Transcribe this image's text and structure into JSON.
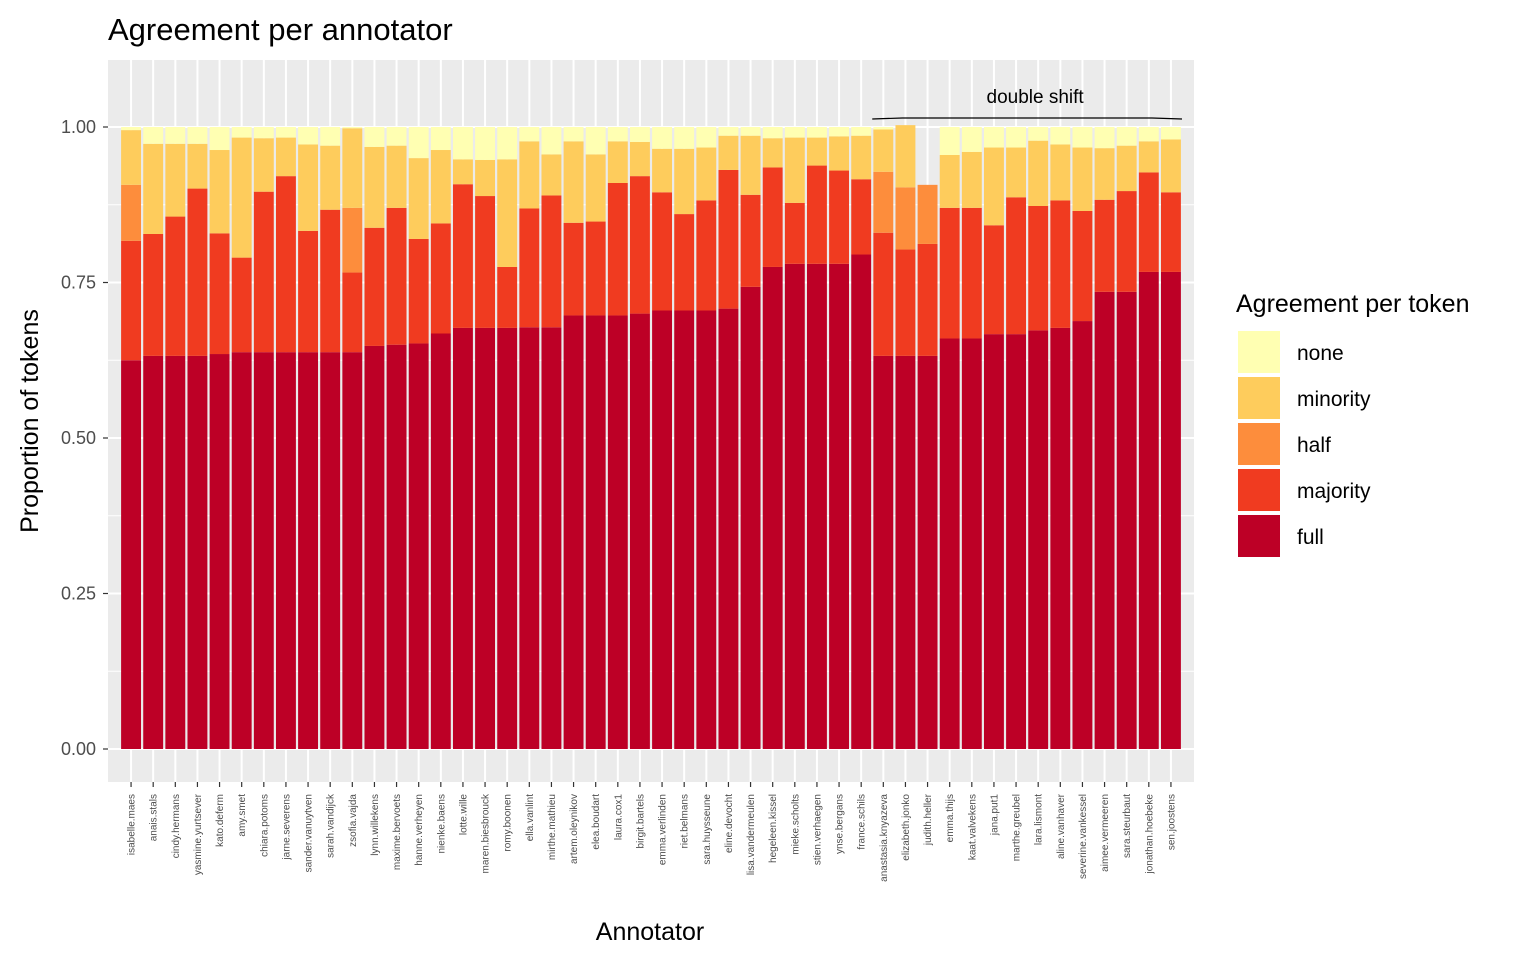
{
  "chart_data": {
    "type": "bar",
    "stacked": true,
    "title": "Agreement per annotator",
    "xlabel": "Annotator",
    "ylabel": "Proportion of tokens",
    "ylim": [
      0,
      1.0
    ],
    "yticks": [
      "0.00",
      "0.25",
      "0.50",
      "0.75",
      "1.00"
    ],
    "ytick_values": [
      0,
      0.25,
      0.5,
      0.75,
      1.0
    ],
    "grid": true,
    "legend": {
      "title": "Agreement per token",
      "placement": "right"
    },
    "annotation": {
      "text": "double shift",
      "from": "anastasia.knyazeva",
      "to": "sen.joostens"
    },
    "categories": [
      "isabelle.maes",
      "anais.stals",
      "cindy.hermans",
      "yasmine.yurtsever",
      "kato.deferm",
      "amy.smet",
      "chiara.potoms",
      "jarne.severens",
      "sander.vanuytven",
      "sarah.vandijck",
      "zsofia.vajda",
      "lynn.willekens",
      "maxime.bervoets",
      "hanne.verheyen",
      "nienke.baens",
      "lotte.wille",
      "maren.biesbrouck",
      "romy.boonen",
      "ella.vanlint",
      "mirthe.mathieu",
      "artem.oleynikov",
      "elea.boudart",
      "laura.cox1",
      "birgit.bartels",
      "emma.verlinden",
      "riet.belmans",
      "sara.huysseune",
      "eline.devocht",
      "lisa.vandermeulen",
      "hegeleen.kissel",
      "mieke.scholts",
      "stien.verhaegen",
      "ynse.bergans",
      "france.schils",
      "anastasia.knyazeva",
      "elizabeth.jonko",
      "judith.heller",
      "emma.thijs",
      "kaat.valvekens",
      "jana.put1",
      "marthe.greubel",
      "lara.lismont",
      "aline.vanhaver",
      "severine.vankessel",
      "aimee.vermeeren",
      "sara.steurbaut",
      "jonathan.hoebeke",
      "sen.joostens"
    ],
    "series": [
      {
        "name": "full",
        "color": "#BD0026",
        "values": [
          0.625,
          0.632,
          0.632,
          0.632,
          0.635,
          0.638,
          0.638,
          0.638,
          0.638,
          0.638,
          0.638,
          0.648,
          0.65,
          0.652,
          0.668,
          0.677,
          0.677,
          0.677,
          0.678,
          0.678,
          0.697,
          0.697,
          0.697,
          0.7,
          0.705,
          0.705,
          0.705,
          0.708,
          0.743,
          0.775,
          0.78,
          0.78,
          0.78,
          0.795,
          0.632,
          0.632,
          0.632,
          0.66,
          0.66,
          0.667,
          0.667,
          0.673,
          0.677,
          0.688,
          0.735,
          0.735,
          0.767,
          0.767
        ]
      },
      {
        "name": "majority",
        "color": "#F03B20",
        "values": [
          0.192,
          0.196,
          0.224,
          0.269,
          0.194,
          0.152,
          0.258,
          0.283,
          0.195,
          0.229,
          0.128,
          0.19,
          0.22,
          0.168,
          0.177,
          0.231,
          0.212,
          0.098,
          0.191,
          0.212,
          0.149,
          0.151,
          0.213,
          0.221,
          0.19,
          0.155,
          0.177,
          0.223,
          0.148,
          0.16,
          0.098,
          0.158,
          0.15,
          0.121,
          0.198,
          0.171,
          0.18,
          0.21,
          0.21,
          0.175,
          0.22,
          0.2,
          0.205,
          0.177,
          0.148,
          0.162,
          0.16,
          0.128
        ]
      },
      {
        "name": "half",
        "color": "#FD8D3C",
        "values": [
          0.09,
          0,
          0,
          0,
          0,
          0,
          0,
          0,
          0,
          0,
          0.104,
          0,
          0,
          0,
          0,
          0,
          0,
          0,
          0,
          0,
          0,
          0,
          0,
          0,
          0,
          0,
          0,
          0,
          0,
          0,
          0,
          0,
          0,
          0,
          0.098,
          0.1,
          0.095,
          0,
          0,
          0,
          0,
          0,
          0,
          0,
          0,
          0,
          0,
          0
        ]
      },
      {
        "name": "minority",
        "color": "#FECC5C",
        "values": [
          0.088,
          0.145,
          0.117,
          0.072,
          0.134,
          0.193,
          0.086,
          0.062,
          0.139,
          0.103,
          0.128,
          0.13,
          0.1,
          0.13,
          0.118,
          0.04,
          0.058,
          0.173,
          0.108,
          0.066,
          0.131,
          0.108,
          0.067,
          0.055,
          0.07,
          0.105,
          0.085,
          0.055,
          0.095,
          0.047,
          0.105,
          0.045,
          0.055,
          0.07,
          0.068,
          0.1,
          0.0,
          0.085,
          0.09,
          0.125,
          0.08,
          0.105,
          0.09,
          0.102,
          0.083,
          0.073,
          0.05,
          0.085
        ]
      },
      {
        "name": "none",
        "color": "#FFFFB2",
        "values": [
          0.005,
          0.027,
          0.027,
          0.027,
          0.037,
          0.017,
          0.018,
          0.017,
          0.028,
          0.03,
          0.002,
          0.032,
          0.03,
          0.05,
          0.037,
          0.052,
          0.053,
          0.052,
          0.023,
          0.044,
          0.023,
          0.044,
          0.023,
          0.024,
          0.035,
          0.035,
          0.033,
          0.014,
          0.014,
          0.018,
          0.017,
          0.017,
          0.015,
          0.014,
          0.004,
          0.0,
          0.0,
          0.045,
          0.04,
          0.033,
          0.033,
          0.022,
          0.028,
          0.033,
          0.034,
          0.03,
          0.023,
          0.02
        ]
      }
    ]
  }
}
